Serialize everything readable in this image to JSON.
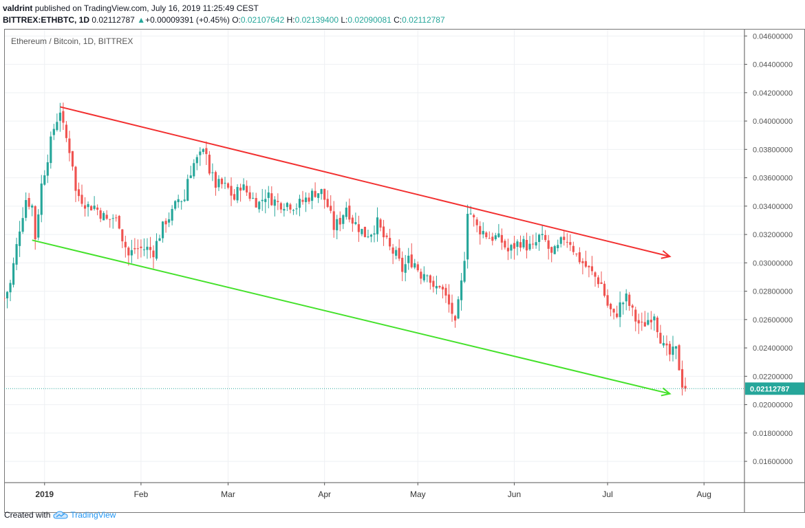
{
  "header": {
    "author": "valdrint",
    "published_text": "published on TradingView.com, July 16, 2019 11:25:49 CEST",
    "symbol": "BITTREX:ETHBTC, 1D",
    "last": "0.02112787",
    "change": "+0.00009391 (+0.45%)",
    "o_label": "O:",
    "o_value": "0.02107642",
    "h_label": "H:",
    "h_value": "0.02139400",
    "l_label": "L:",
    "l_value": "0.02090081",
    "c_label": "C:",
    "c_value": "0.02112787"
  },
  "footer": {
    "created_with": "Created with",
    "brand": "TradingView"
  },
  "colors": {
    "up": "#26a69a",
    "down": "#ef5350",
    "upper_channel": "#f23030",
    "lower_channel": "#44e12a",
    "price_line": "#26a69a"
  },
  "chart_data": {
    "type": "candlestick",
    "title": "Ethereum / Bitcoin, 1D, BITTREX",
    "x_tick_labels": [
      "2019",
      "Feb",
      "Mar",
      "Apr",
      "May",
      "Jun",
      "Jul",
      "Aug"
    ],
    "x_ticks_day": [
      0,
      31,
      59,
      90,
      120,
      151,
      181,
      212
    ],
    "y_tick_labels": [
      "0.04600000",
      "0.04400000",
      "0.04200000",
      "0.04000000",
      "0.03800000",
      "0.03600000",
      "0.03400000",
      "0.03200000",
      "0.03000000",
      "0.02800000",
      "0.02600000",
      "0.02400000",
      "0.02200000",
      "0.02000000",
      "0.01800000",
      "0.01600000"
    ],
    "ylim": [
      0.0145,
      0.0465
    ],
    "xlim_day": [
      -13,
      225
    ],
    "last_price_label": "0.02112787",
    "last_price": 0.02112787,
    "anchors": [
      [
        -13,
        0.0275
      ],
      [
        -11,
        0.0285
      ],
      [
        -8,
        0.0325
      ],
      [
        -6,
        0.0345
      ],
      [
        -4,
        0.034
      ],
      [
        -3,
        0.0318
      ],
      [
        -1,
        0.0355
      ],
      [
        1,
        0.0375
      ],
      [
        3,
        0.0395
      ],
      [
        5,
        0.0408
      ],
      [
        6,
        0.0395
      ],
      [
        8,
        0.038
      ],
      [
        9,
        0.037
      ],
      [
        10,
        0.035
      ],
      [
        12,
        0.0345
      ],
      [
        14,
        0.034
      ],
      [
        16,
        0.034
      ],
      [
        18,
        0.0335
      ],
      [
        20,
        0.033
      ],
      [
        22,
        0.0332
      ],
      [
        24,
        0.0328
      ],
      [
        25,
        0.0318
      ],
      [
        27,
        0.0305
      ],
      [
        29,
        0.031
      ],
      [
        31,
        0.031
      ],
      [
        33,
        0.031
      ],
      [
        35,
        0.0308
      ],
      [
        37,
        0.032
      ],
      [
        39,
        0.033
      ],
      [
        41,
        0.0335
      ],
      [
        43,
        0.0345
      ],
      [
        45,
        0.0345
      ],
      [
        46,
        0.036
      ],
      [
        48,
        0.037
      ],
      [
        50,
        0.0375
      ],
      [
        52,
        0.038
      ],
      [
        53,
        0.0365
      ],
      [
        55,
        0.0355
      ],
      [
        57,
        0.0355
      ],
      [
        59,
        0.0352
      ],
      [
        61,
        0.0345
      ],
      [
        63,
        0.0355
      ],
      [
        65,
        0.035
      ],
      [
        67,
        0.0345
      ],
      [
        69,
        0.0342
      ],
      [
        71,
        0.0348
      ],
      [
        73,
        0.0345
      ],
      [
        75,
        0.0342
      ],
      [
        78,
        0.0342
      ],
      [
        81,
        0.034
      ],
      [
        84,
        0.0345
      ],
      [
        87,
        0.035
      ],
      [
        89,
        0.035
      ],
      [
        91,
        0.034
      ],
      [
        93,
        0.0325
      ],
      [
        95,
        0.033
      ],
      [
        97,
        0.034
      ],
      [
        99,
        0.033
      ],
      [
        101,
        0.0325
      ],
      [
        103,
        0.032
      ],
      [
        105,
        0.0322
      ],
      [
        107,
        0.0328
      ],
      [
        109,
        0.0318
      ],
      [
        111,
        0.031
      ],
      [
        113,
        0.0305
      ],
      [
        115,
        0.0295
      ],
      [
        117,
        0.0302
      ],
      [
        119,
        0.03
      ],
      [
        121,
        0.0292
      ],
      [
        123,
        0.0295
      ],
      [
        125,
        0.028
      ],
      [
        127,
        0.0285
      ],
      [
        129,
        0.0275
      ],
      [
        131,
        0.0265
      ],
      [
        132,
        0.0255
      ],
      [
        133,
        0.027
      ],
      [
        134,
        0.0285
      ],
      [
        135,
        0.0305
      ],
      [
        136,
        0.0338
      ],
      [
        137,
        0.0335
      ],
      [
        139,
        0.0325
      ],
      [
        141,
        0.0322
      ],
      [
        143,
        0.0318
      ],
      [
        145,
        0.0318
      ],
      [
        147,
        0.0315
      ],
      [
        149,
        0.0308
      ],
      [
        151,
        0.0312
      ],
      [
        153,
        0.0315
      ],
      [
        155,
        0.0312
      ],
      [
        157,
        0.031
      ],
      [
        159,
        0.0318
      ],
      [
        161,
        0.0315
      ],
      [
        163,
        0.0305
      ],
      [
        165,
        0.031
      ],
      [
        167,
        0.0318
      ],
      [
        169,
        0.0315
      ],
      [
        171,
        0.0305
      ],
      [
        173,
        0.03
      ],
      [
        175,
        0.0295
      ],
      [
        177,
        0.029
      ],
      [
        179,
        0.0285
      ],
      [
        181,
        0.027
      ],
      [
        183,
        0.0262
      ],
      [
        184,
        0.0265
      ],
      [
        185,
        0.027
      ],
      [
        187,
        0.0275
      ],
      [
        188,
        0.027
      ],
      [
        190,
        0.026
      ],
      [
        192,
        0.0255
      ],
      [
        194,
        0.026
      ],
      [
        196,
        0.0265
      ],
      [
        197,
        0.0255
      ],
      [
        199,
        0.024
      ],
      [
        201,
        0.0235
      ],
      [
        203,
        0.0238
      ],
      [
        205,
        0.0215
      ],
      [
        206,
        0.0211
      ]
    ],
    "trendlines": [
      {
        "name": "upper",
        "color": "#f23030",
        "points": [
          [
            5,
            0.041
          ],
          [
            201,
            0.03045
          ]
        ],
        "arrow": true
      },
      {
        "name": "lower",
        "color": "#44e12a",
        "points": [
          [
            -4,
            0.0316
          ],
          [
            201,
            0.02077
          ]
        ],
        "arrow": true
      }
    ]
  }
}
